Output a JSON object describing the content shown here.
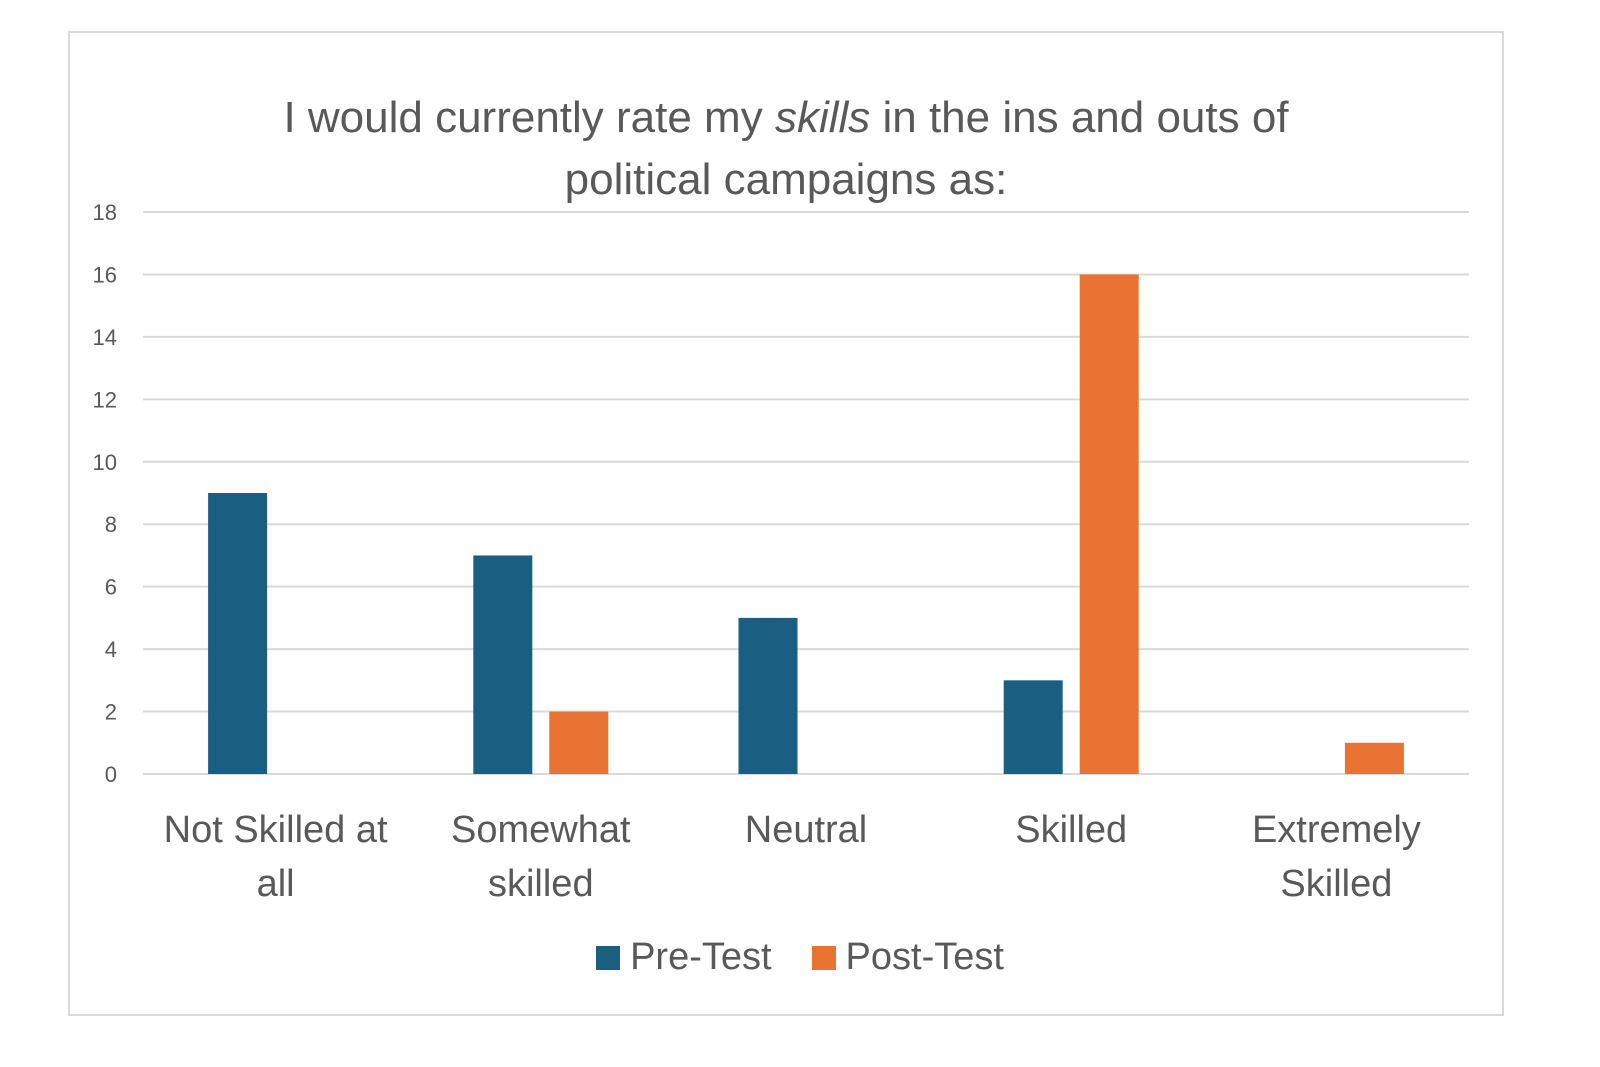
{
  "chart_data": {
    "type": "bar",
    "title": {
      "line1_before": "I would currently rate my ",
      "line1_emphasis": "skills",
      "line1_after": " in the ins and outs of",
      "line2": "political campaigns as:"
    },
    "categories": [
      [
        "Not Skilled at",
        "all"
      ],
      [
        "Somewhat",
        "skilled"
      ],
      [
        "Neutral"
      ],
      [
        "Skilled"
      ],
      [
        "Extremely",
        "Skilled"
      ]
    ],
    "series": [
      {
        "name": "Pre-Test",
        "color": "#1a5e82",
        "values": [
          9,
          7,
          5,
          3,
          0
        ]
      },
      {
        "name": "Post-Test",
        "color": "#e87332",
        "values": [
          0,
          2,
          0,
          16,
          1
        ]
      }
    ],
    "ylim": [
      0,
      18
    ],
    "yticks": [
      0,
      2,
      4,
      6,
      8,
      10,
      12,
      14,
      16,
      18
    ],
    "grid": true,
    "legend_position": "bottom"
  }
}
